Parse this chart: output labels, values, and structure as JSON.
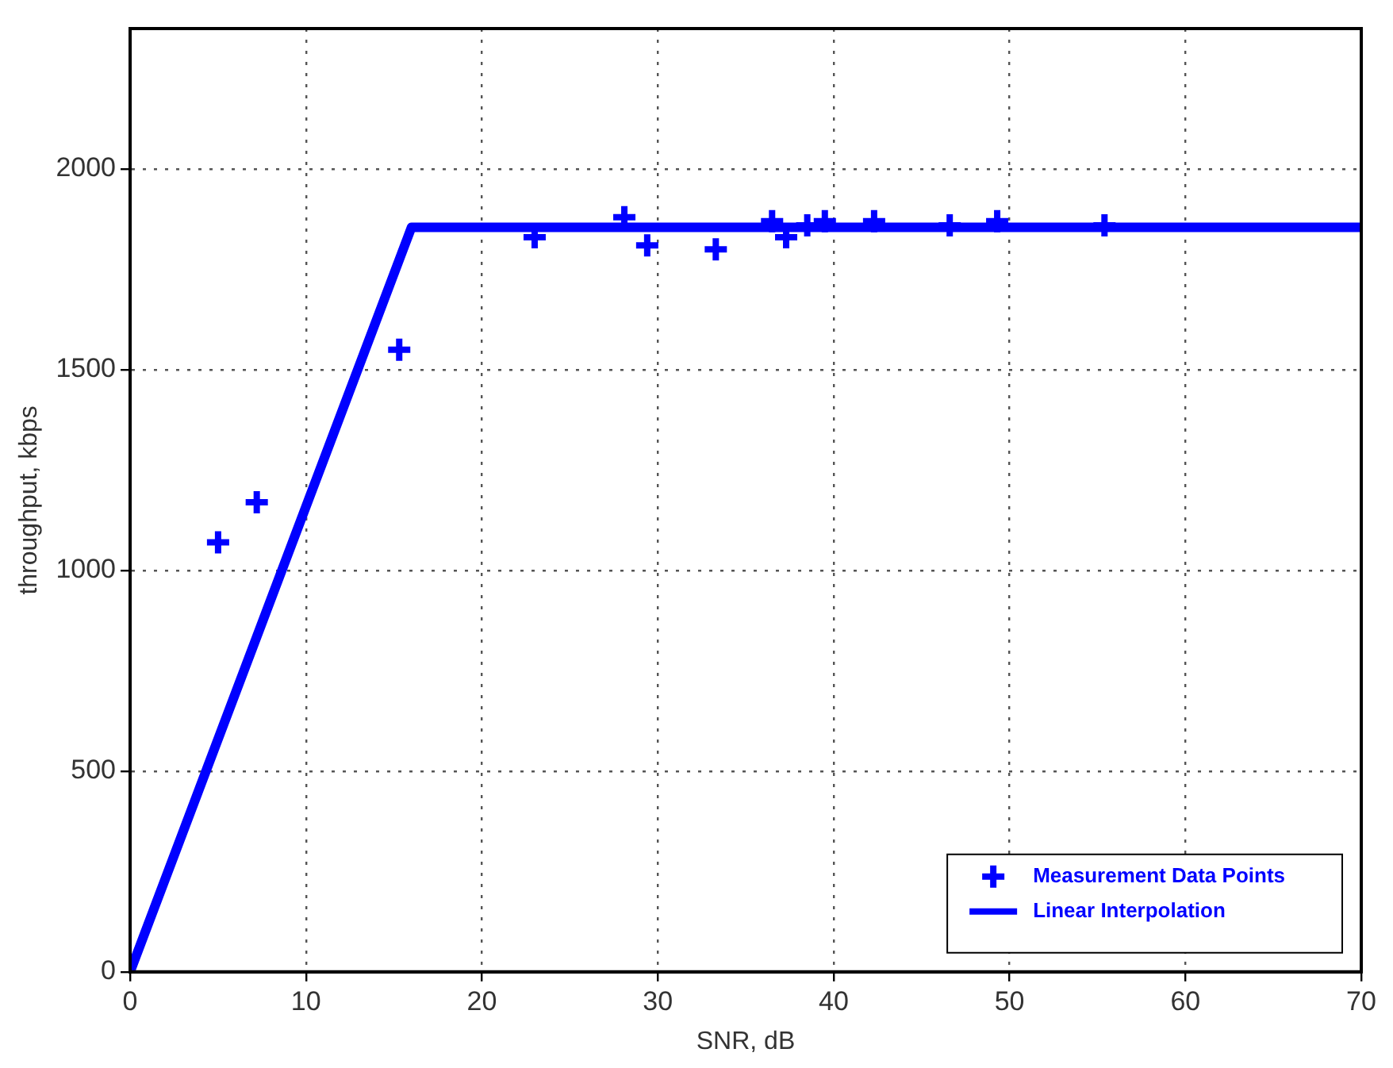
{
  "chart_data": {
    "type": "scatter",
    "xlabel": "SNR, dB",
    "ylabel": "throughput, kbps",
    "xlim": [
      0,
      70
    ],
    "xticks": [
      0,
      10,
      20,
      30,
      40,
      50,
      60,
      70
    ],
    "ylim": [
      0,
      2350
    ],
    "yticks": [
      0,
      500,
      1000,
      1500,
      2000
    ],
    "grid": true,
    "legend": "bottom right",
    "series": [
      {
        "name": "Measurement Data Points",
        "marker": "cross",
        "color": "#0000ff",
        "x": [
          5,
          7.2,
          15.3,
          23,
          28.1,
          29.4,
          33.3,
          36.5,
          37.3,
          38.5,
          39.5,
          42.3,
          46.6,
          49.3,
          55.4
        ],
        "values": [
          1070,
          1170,
          1550,
          1830,
          1880,
          1810,
          1800,
          1870,
          1830,
          1860,
          1870,
          1870,
          1860,
          1870,
          1860
        ]
      },
      {
        "name": "Linear Interpolation",
        "type": "line",
        "marker": "none",
        "line_style": "solid",
        "color": "#0000ff",
        "x": [
          0,
          16,
          70
        ],
        "values": [
          0,
          1855,
          1855
        ]
      }
    ]
  }
}
